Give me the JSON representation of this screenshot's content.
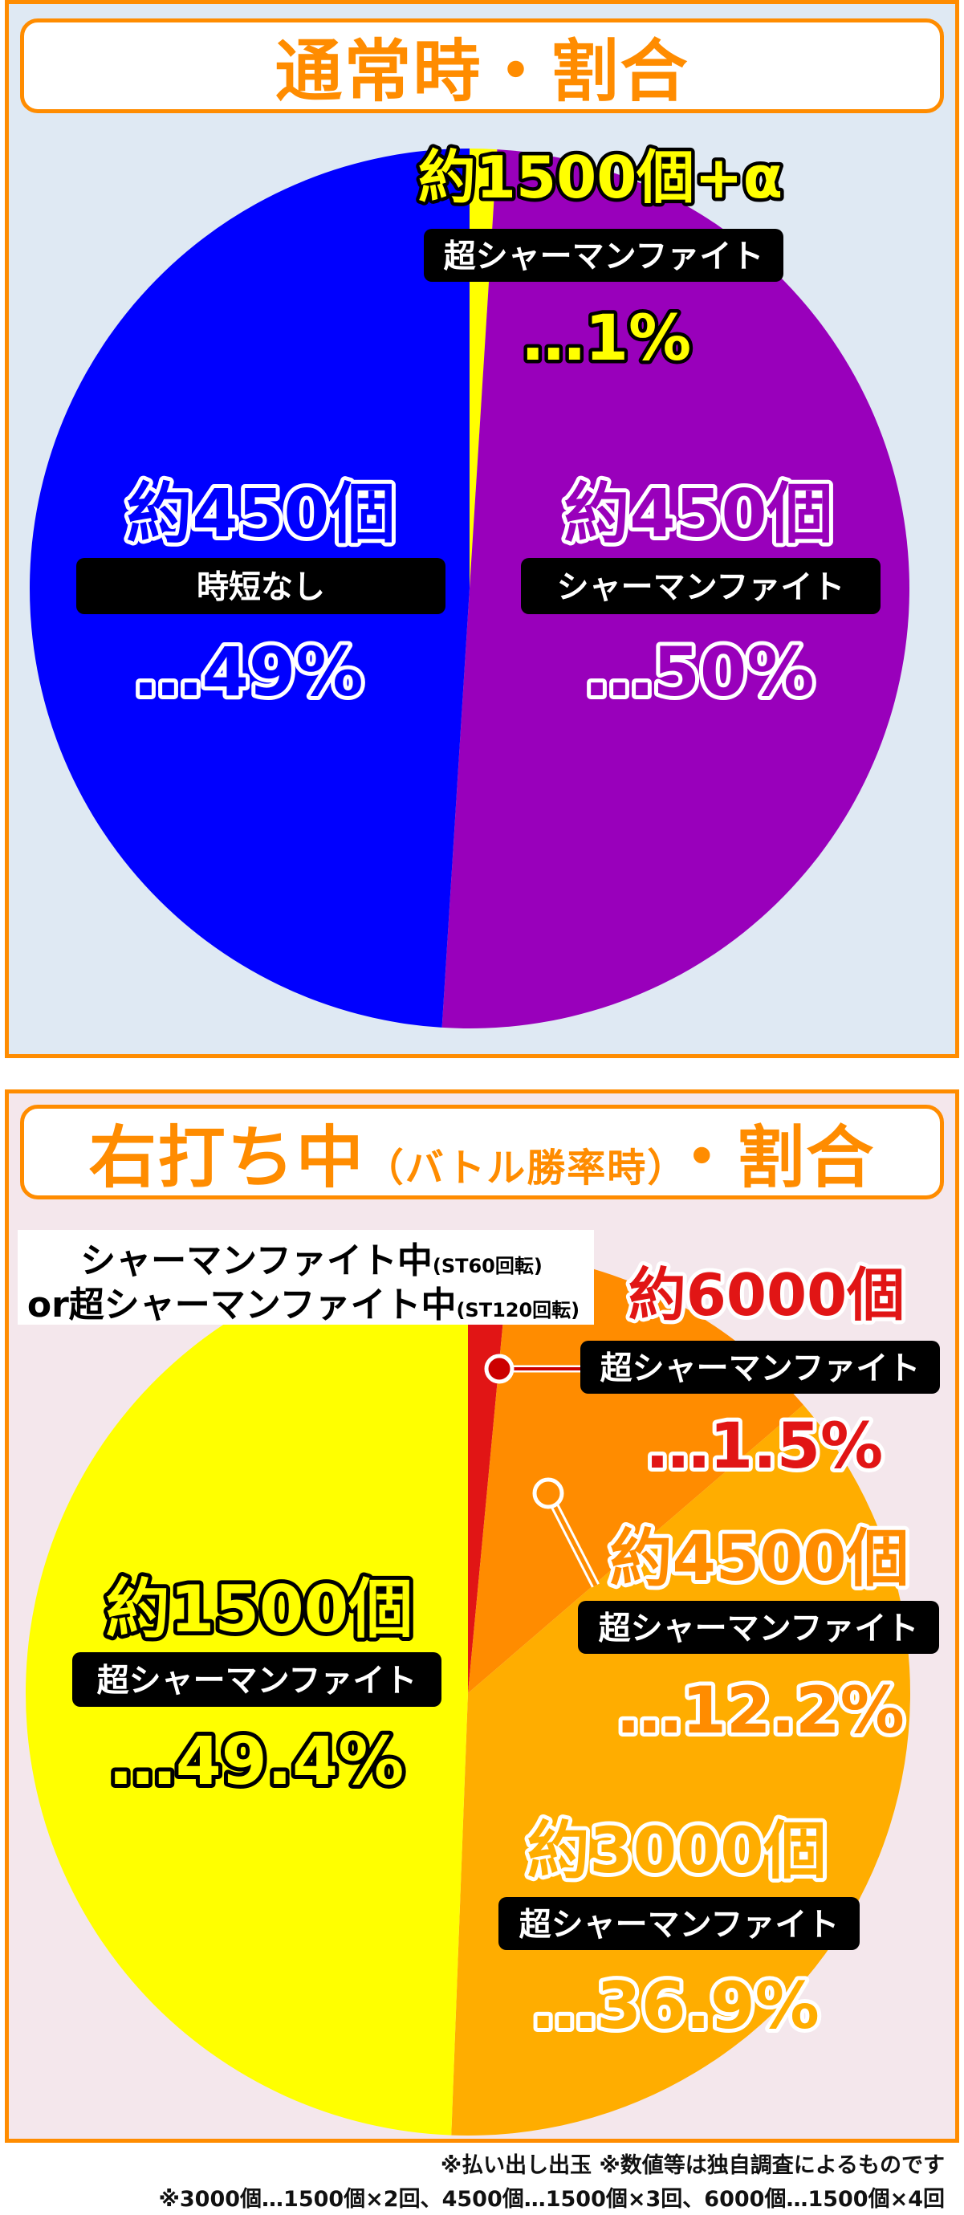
{
  "chart_data": [
    {
      "type": "pie",
      "title": "通常時・割合",
      "slices": [
        {
          "prize": "約1500個+α",
          "label": "超シャーマンファイト",
          "pct_text": "…1%",
          "value": 1,
          "color": "#ffff00"
        },
        {
          "prize": "約450個",
          "label": "シャーマンファイト",
          "pct_text": "…50%",
          "value": 50,
          "color": "#9900bb"
        },
        {
          "prize": "約450個",
          "label": "時短なし",
          "pct_text": "…49%",
          "value": 49,
          "color": "#0000ff"
        }
      ]
    },
    {
      "type": "pie",
      "title_main": "右打ち中",
      "title_paren": "（バトル勝率時）",
      "title_tail": "・割合",
      "subheading_line1": "シャーマンファイト中",
      "subheading_line1_note": "(ST60回転)",
      "subheading_line2": "or超シャーマンファイト中",
      "subheading_line2_note": "(ST120回転)",
      "slices": [
        {
          "prize": "約6000個",
          "label": "超シャーマンファイト",
          "pct_text": "…1.5%",
          "value": 1.5,
          "color": "#e11515"
        },
        {
          "prize": "約4500個",
          "label": "超シャーマンファイト",
          "pct_text": "…12.2%",
          "value": 12.2,
          "color": "#ff8c00"
        },
        {
          "prize": "約3000個",
          "label": "超シャーマンファイト",
          "pct_text": "…36.9%",
          "value": 36.9,
          "color": "#ffad00"
        },
        {
          "prize": "約1500個",
          "label": "超シャーマンファイト",
          "pct_text": "…49.4%",
          "value": 49.4,
          "color": "#ffff00"
        }
      ]
    }
  ],
  "footnote": {
    "line1": "※払い出し出玉 ※数値等は独自調査によるものです",
    "line2": "※3000個…1500個×2回、4500個…1500個×3回、6000個…1500個×4回"
  }
}
